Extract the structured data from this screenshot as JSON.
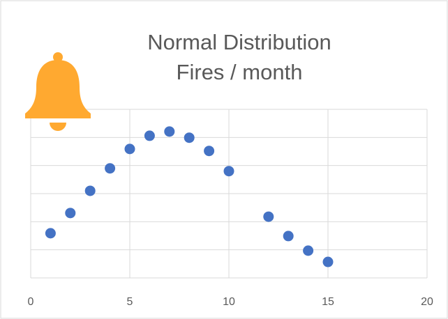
{
  "chart_data": {
    "type": "scatter",
    "title": [
      "Normal Distribution",
      "Fires / month"
    ],
    "x": [
      1,
      2,
      3,
      4,
      5,
      6,
      7,
      8,
      9,
      10,
      12,
      13,
      14,
      15
    ],
    "values": [
      1.59,
      2.31,
      3.1,
      3.9,
      4.59,
      5.06,
      5.21,
      4.99,
      4.52,
      3.8,
      2.18,
      1.49,
      0.97,
      0.57
    ],
    "color": "#4472c4",
    "xlim": [
      0,
      20
    ],
    "xticks": [
      0,
      5,
      10,
      15,
      20
    ],
    "ylim": [
      0,
      6
    ],
    "yticks": [
      0,
      1,
      2,
      3,
      4,
      5,
      6
    ],
    "grid": true
  }
}
